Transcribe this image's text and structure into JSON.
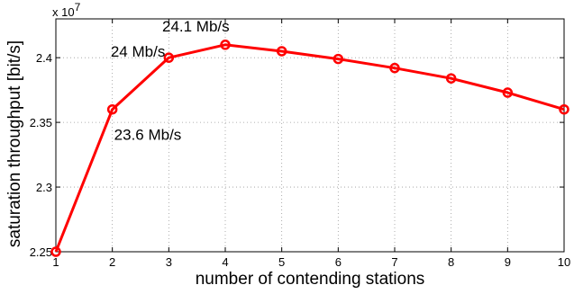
{
  "chart_data": {
    "type": "line",
    "title": "",
    "xlabel": "number of contending stations",
    "ylabel": "saturation throughput [bit/s]",
    "y_multiplier": "x 10",
    "y_exponent": "7",
    "x": [
      1,
      2,
      3,
      4,
      5,
      6,
      7,
      8,
      9,
      10
    ],
    "xticks": [
      "1",
      "2",
      "3",
      "4",
      "5",
      "6",
      "7",
      "8",
      "9",
      "10"
    ],
    "yticks": [
      "2.25",
      "2.3",
      "2.35",
      "2.4"
    ],
    "xlim": [
      1,
      10
    ],
    "ylim": [
      2.25,
      2.43
    ],
    "grid": true,
    "series": [
      {
        "values": [
          2.25,
          2.36,
          2.4,
          2.41,
          2.405,
          2.399,
          2.392,
          2.384,
          2.373,
          2.36
        ],
        "color": "#ff0000",
        "marker": "circle"
      }
    ],
    "annotations": [
      {
        "text": "23.6 Mb/s",
        "x": 2,
        "y": 2.36
      },
      {
        "text": "24 Mb/s",
        "x": 3,
        "y": 2.4
      },
      {
        "text": "24.1 Mb/s",
        "x": 4,
        "y": 2.41
      }
    ]
  }
}
